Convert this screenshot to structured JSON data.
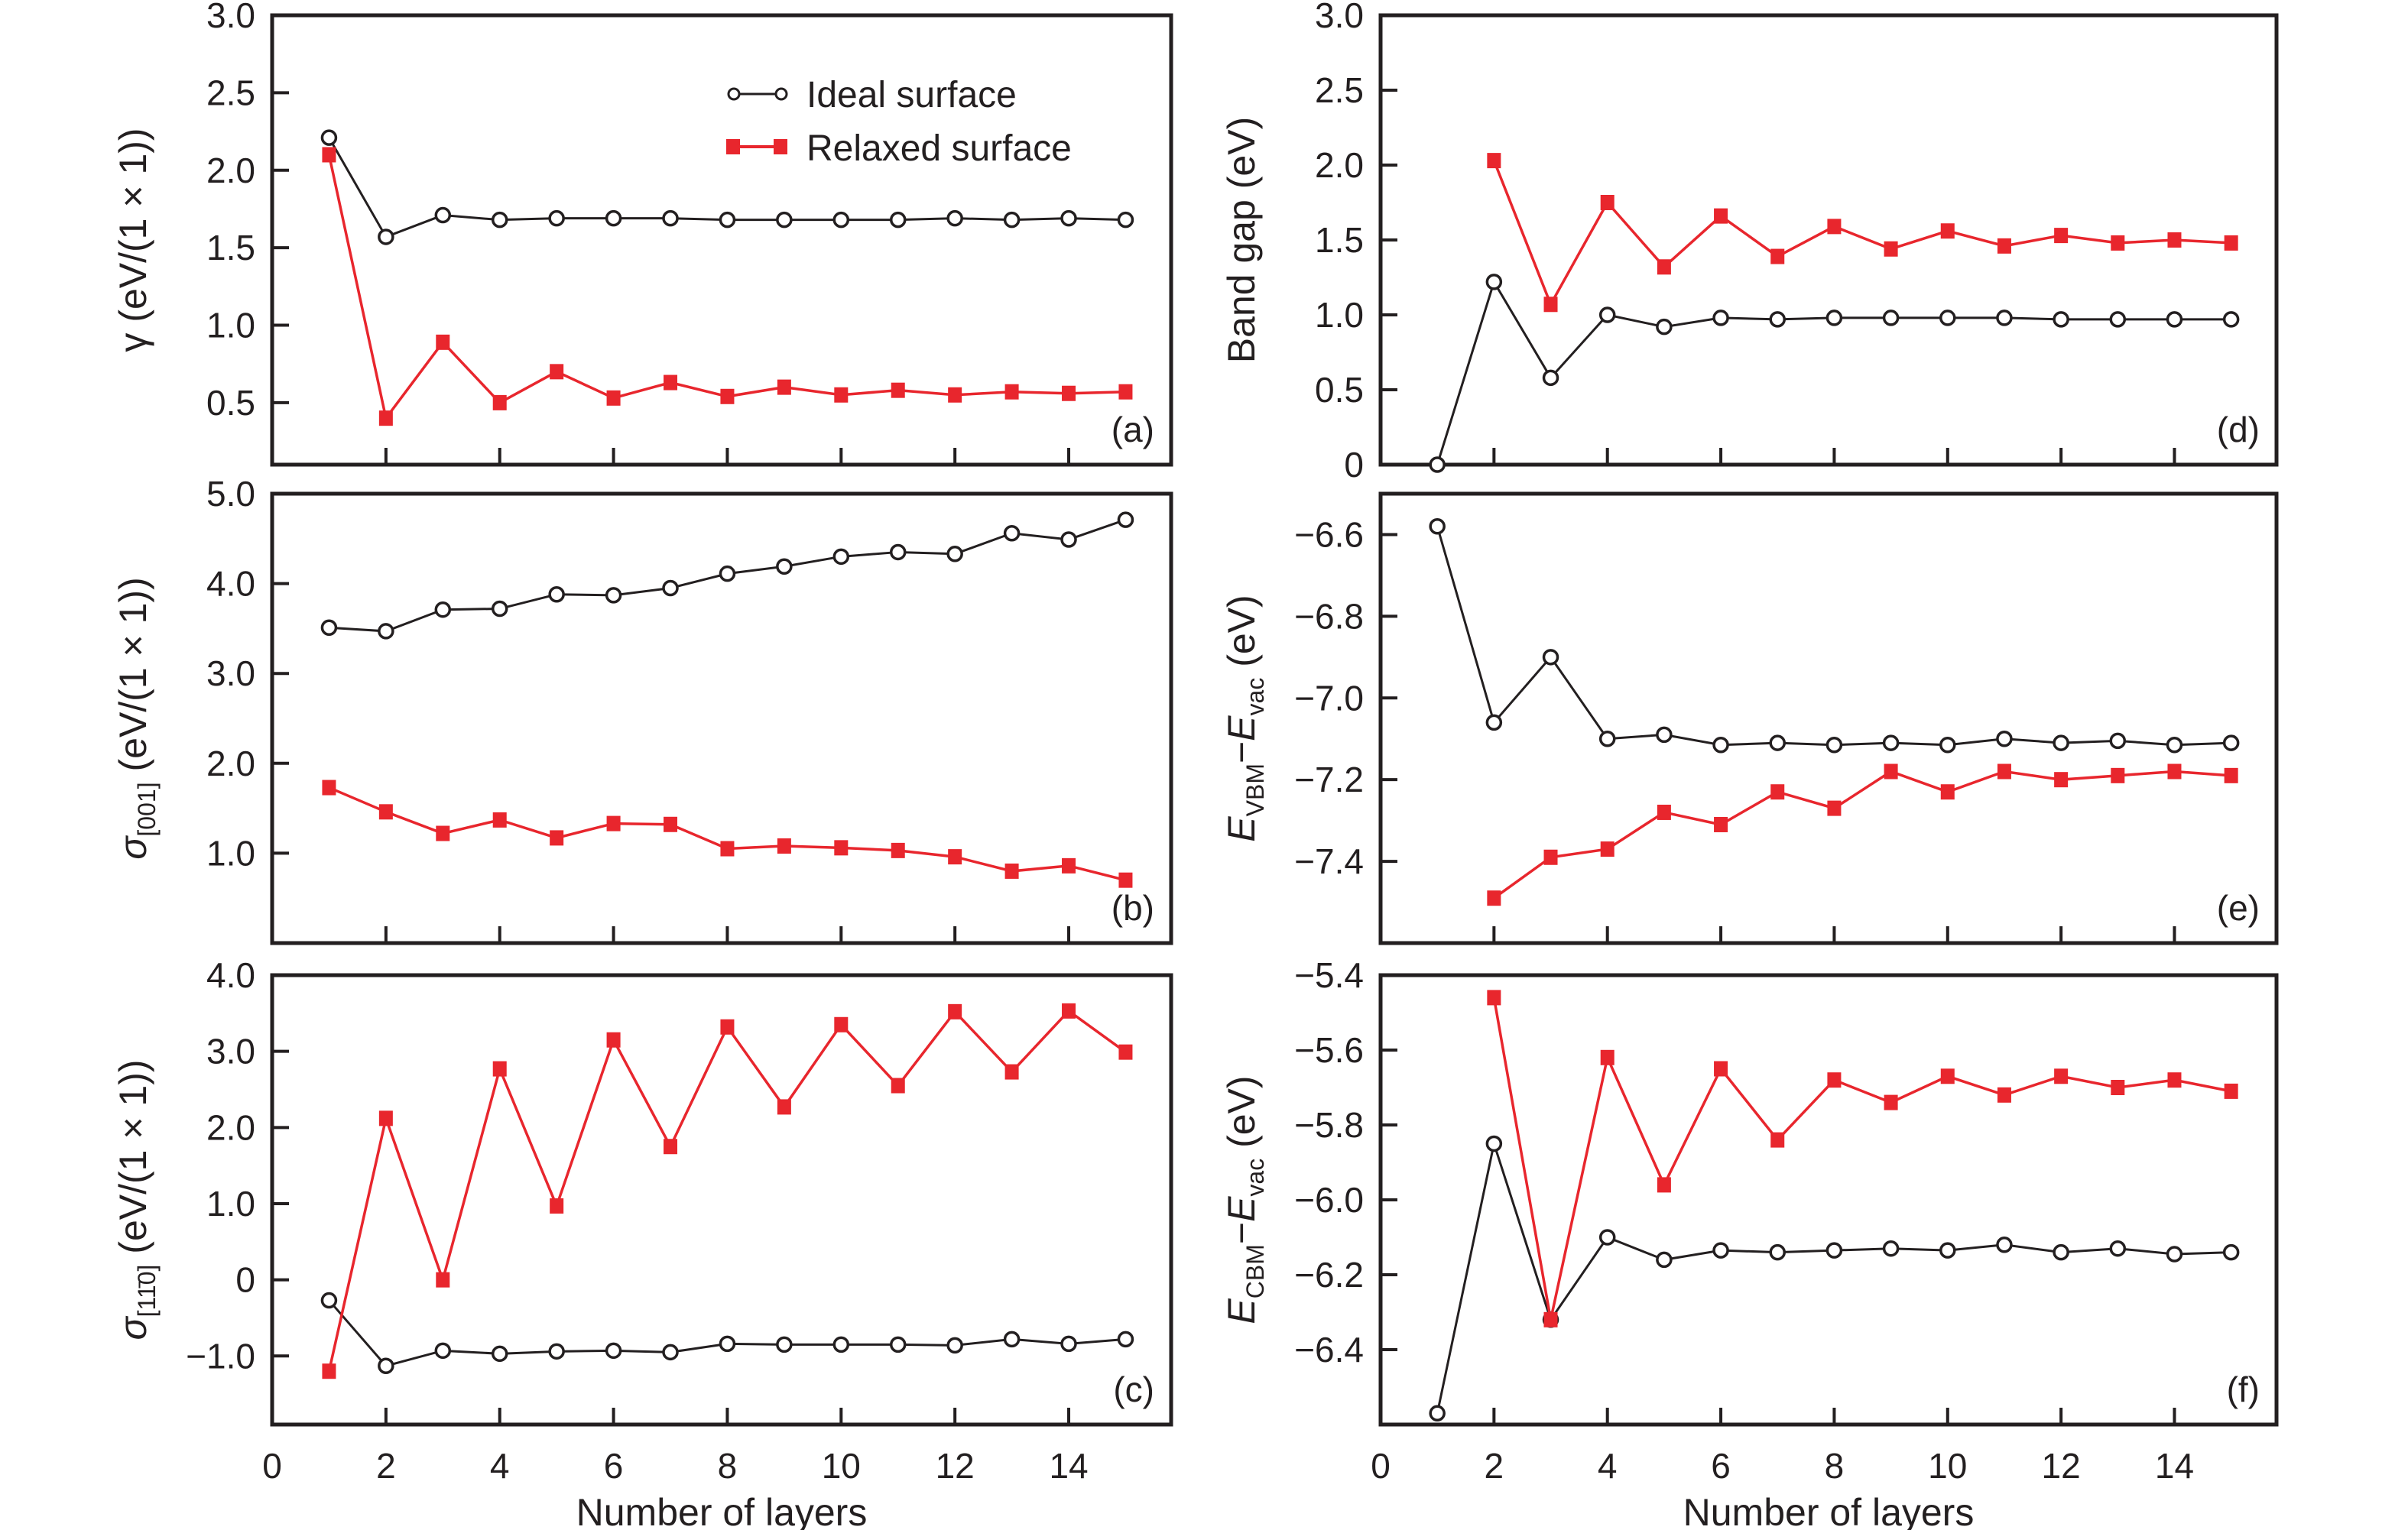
{
  "figure": {
    "legend": {
      "ideal_label": "Ideal surface",
      "relaxed_label": "Relaxed surface",
      "placement": "top-right of panel (a)"
    },
    "colors": {
      "ideal": "#231f20",
      "relaxed": "#e8262d",
      "axis": "#231f20"
    },
    "xlabel": "Number of layers",
    "x_ticks": [
      "0",
      "2",
      "4",
      "6",
      "8",
      "10",
      "12",
      "14"
    ]
  },
  "chart_data": [
    {
      "type": "line",
      "panel": "(a)",
      "ylabel": "γ (eV/(1 × 1))",
      "xlabel": "",
      "xlim": [
        0,
        15.8
      ],
      "ylim": [
        0.1,
        3.0
      ],
      "y_ticks": [
        "0.5",
        "1.0",
        "1.5",
        "2.0",
        "2.5",
        "3.0"
      ],
      "y_tick_values": [
        0.5,
        1.0,
        1.5,
        2.0,
        2.5,
        3.0
      ],
      "x": [
        1,
        2,
        3,
        4,
        5,
        6,
        7,
        8,
        9,
        10,
        11,
        12,
        13,
        14,
        15
      ],
      "series": [
        {
          "name": "Ideal surface",
          "x": [
            1,
            2,
            3,
            4,
            5,
            6,
            7,
            8,
            9,
            10,
            11,
            12,
            13,
            14,
            15
          ],
          "values": [
            2.21,
            1.57,
            1.71,
            1.68,
            1.69,
            1.69,
            1.69,
            1.68,
            1.68,
            1.68,
            1.68,
            1.69,
            1.68,
            1.69,
            1.68
          ]
        },
        {
          "name": "Relaxed surface",
          "x": [
            1,
            2,
            3,
            4,
            5,
            6,
            7,
            8,
            9,
            10,
            11,
            12,
            13,
            14,
            15
          ],
          "values": [
            2.1,
            0.4,
            0.89,
            0.5,
            0.7,
            0.53,
            0.63,
            0.54,
            0.6,
            0.55,
            0.58,
            0.55,
            0.57,
            0.56,
            0.57
          ]
        }
      ]
    },
    {
      "type": "line",
      "panel": "(b)",
      "ylabel": "σ[001] (eV/(1 × 1))",
      "ylabel_parts": {
        "symbol": "σ",
        "subscript": "[001]",
        "rest": " (eV/(1 × 1))"
      },
      "xlim": [
        0,
        15.8
      ],
      "ylim": [
        0.0,
        5.0
      ],
      "y_ticks": [
        "1.0",
        "2.0",
        "3.0",
        "4.0",
        "5.0"
      ],
      "y_tick_values": [
        1.0,
        2.0,
        3.0,
        4.0,
        5.0
      ],
      "series": [
        {
          "name": "Ideal surface",
          "x": [
            1,
            2,
            3,
            4,
            5,
            6,
            7,
            8,
            9,
            10,
            11,
            12,
            13,
            14,
            15
          ],
          "values": [
            3.51,
            3.47,
            3.71,
            3.72,
            3.88,
            3.87,
            3.95,
            4.11,
            4.19,
            4.3,
            4.35,
            4.33,
            4.56,
            4.49,
            4.71
          ]
        },
        {
          "name": "Relaxed surface",
          "x": [
            1,
            2,
            3,
            4,
            5,
            6,
            7,
            8,
            9,
            10,
            11,
            12,
            13,
            14,
            15
          ],
          "values": [
            1.73,
            1.46,
            1.22,
            1.37,
            1.17,
            1.33,
            1.32,
            1.05,
            1.08,
            1.06,
            1.03,
            0.96,
            0.8,
            0.86,
            0.7
          ]
        }
      ]
    },
    {
      "type": "line",
      "panel": "(c)",
      "ylabel": "σ[11̄0] (eV/(1 × 1))",
      "ylabel_parts": {
        "symbol": "σ",
        "subscript": "[11̄0]",
        "rest": " (eV/(1 × 1))"
      },
      "xlabel": "Number of layers",
      "xlim": [
        0,
        15.8
      ],
      "ylim": [
        -1.9,
        4.0
      ],
      "y_ticks": [
        "−1.0",
        "0",
        "1.0",
        "2.0",
        "3.0",
        "4.0"
      ],
      "y_tick_values": [
        -1.0,
        0,
        1.0,
        2.0,
        3.0,
        4.0
      ],
      "series": [
        {
          "name": "Ideal surface",
          "x": [
            1,
            2,
            3,
            4,
            5,
            6,
            7,
            8,
            9,
            10,
            11,
            12,
            13,
            14,
            15
          ],
          "values": [
            -0.27,
            -1.13,
            -0.93,
            -0.97,
            -0.94,
            -0.93,
            -0.95,
            -0.84,
            -0.85,
            -0.85,
            -0.85,
            -0.86,
            -0.78,
            -0.84,
            -0.78
          ]
        },
        {
          "name": "Relaxed surface",
          "x": [
            1,
            2,
            3,
            4,
            5,
            6,
            7,
            8,
            9,
            10,
            11,
            12,
            13,
            14,
            15
          ],
          "values": [
            -1.2,
            2.12,
            0.0,
            2.77,
            0.97,
            3.15,
            1.75,
            3.32,
            2.27,
            3.35,
            2.55,
            3.52,
            2.73,
            3.53,
            2.99
          ]
        }
      ]
    },
    {
      "type": "line",
      "panel": "(d)",
      "ylabel": "Band gap (eV)",
      "xlim": [
        0,
        15.8
      ],
      "ylim": [
        0,
        3.0
      ],
      "y_ticks": [
        "0",
        "0.5",
        "1.0",
        "1.5",
        "2.0",
        "2.5",
        "3.0"
      ],
      "y_tick_values": [
        0,
        0.5,
        1.0,
        1.5,
        2.0,
        2.5,
        3.0
      ],
      "series": [
        {
          "name": "Ideal surface",
          "x": [
            1,
            2,
            3,
            4,
            5,
            6,
            7,
            8,
            9,
            10,
            11,
            12,
            13,
            14,
            15
          ],
          "values": [
            0.0,
            1.22,
            0.58,
            1.0,
            0.92,
            0.98,
            0.97,
            0.98,
            0.98,
            0.98,
            0.98,
            0.97,
            0.97,
            0.97,
            0.97
          ]
        },
        {
          "name": "Relaxed surface",
          "x": [
            2,
            3,
            4,
            5,
            6,
            7,
            8,
            9,
            10,
            11,
            12,
            13,
            14,
            15
          ],
          "values": [
            2.03,
            1.07,
            1.75,
            1.32,
            1.66,
            1.39,
            1.59,
            1.44,
            1.56,
            1.46,
            1.53,
            1.48,
            1.5,
            1.48
          ]
        }
      ]
    },
    {
      "type": "line",
      "panel": "(e)",
      "ylabel": "EVBM−Evac (eV)",
      "ylabel_parts": {
        "e1": "E",
        "sub1": "VBM",
        "minus": "−",
        "e2": "E",
        "sub2": "vac",
        "rest": " (eV)"
      },
      "xlim": [
        0,
        15.8
      ],
      "ylim": [
        -7.6,
        -6.5
      ],
      "y_ticks": [
        "−7.4",
        "−7.2",
        "−7.0",
        "−6.8",
        "−6.6"
      ],
      "y_tick_values": [
        -7.4,
        -7.2,
        -7.0,
        -6.8,
        -6.6
      ],
      "series": [
        {
          "name": "Ideal surface",
          "x": [
            1,
            2,
            3,
            4,
            5,
            6,
            7,
            8,
            9,
            10,
            11,
            12,
            13,
            14,
            15
          ],
          "values": [
            -6.58,
            -7.06,
            -6.9,
            -7.1,
            -7.09,
            -7.115,
            -7.11,
            -7.115,
            -7.11,
            -7.115,
            -7.1,
            -7.11,
            -7.105,
            -7.115,
            -7.11
          ]
        },
        {
          "name": "Relaxed surface",
          "x": [
            2,
            3,
            4,
            5,
            6,
            7,
            8,
            9,
            10,
            11,
            12,
            13,
            14,
            15
          ],
          "values": [
            -7.49,
            -7.39,
            -7.37,
            -7.28,
            -7.31,
            -7.23,
            -7.27,
            -7.18,
            -7.23,
            -7.18,
            -7.2,
            -7.19,
            -7.18,
            -7.19
          ]
        }
      ]
    },
    {
      "type": "line",
      "panel": "(f)",
      "ylabel": "ECBM−Evac (eV)",
      "ylabel_parts": {
        "e1": "E",
        "sub1": "CBM",
        "minus": "−",
        "e2": "E",
        "sub2": "vac",
        "rest": " (eV)"
      },
      "xlabel": "Number of layers",
      "xlim": [
        0,
        15.8
      ],
      "ylim": [
        -6.6,
        -5.4
      ],
      "y_ticks": [
        "−6.4",
        "−6.2",
        "−6.0",
        "−5.8",
        "−5.6",
        "−5.4"
      ],
      "y_tick_values": [
        -6.4,
        -6.2,
        -6.0,
        -5.8,
        -5.6,
        -5.4
      ],
      "series": [
        {
          "name": "Ideal surface",
          "x": [
            1,
            2,
            3,
            4,
            5,
            6,
            7,
            8,
            9,
            10,
            11,
            12,
            13,
            14,
            15
          ],
          "values": [
            -6.57,
            -5.85,
            -6.32,
            -6.1,
            -6.16,
            -6.135,
            -6.14,
            -6.135,
            -6.13,
            -6.135,
            -6.12,
            -6.14,
            -6.13,
            -6.145,
            -6.14
          ]
        },
        {
          "name": "Relaxed surface",
          "x": [
            2,
            3,
            4,
            5,
            6,
            7,
            8,
            9,
            10,
            11,
            12,
            13,
            14,
            15
          ],
          "values": [
            -5.46,
            -6.32,
            -5.62,
            -5.96,
            -5.65,
            -5.84,
            -5.68,
            -5.74,
            -5.67,
            -5.72,
            -5.67,
            -5.7,
            -5.68,
            -5.71
          ]
        }
      ]
    }
  ]
}
